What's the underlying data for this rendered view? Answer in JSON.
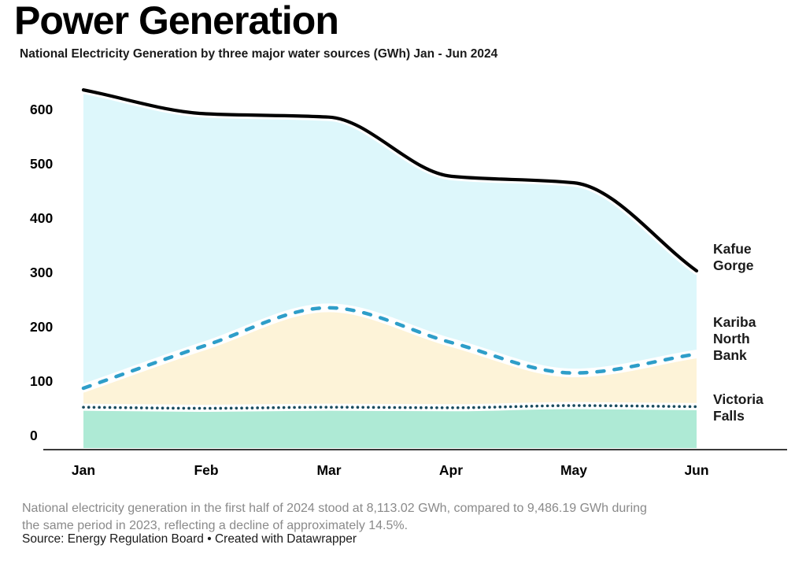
{
  "title": "Power Generation",
  "subtitle": "National Electricity Generation by three major water sources (GWh) Jan - Jun 2024",
  "footer": {
    "note": "National electricity generation in the first half of 2024 stood at 8,113.02 GWh, compared to 9,486.19 GWh during\nthe same period in 2023, reflecting a decline of approximately 14.5%.",
    "source": "Source: Energy Regulation Board • Created with Datawrapper"
  },
  "chart_data": {
    "type": "area",
    "title": "Power Generation",
    "subtitle": "National Electricity Generation by three major water sources (GWh) Jan - Jun 2024",
    "unit": "GWh",
    "categories": [
      "Jan",
      "Feb",
      "Mar",
      "Apr",
      "May",
      "Jun"
    ],
    "y_ticks": [
      600,
      500,
      400,
      300,
      200,
      100,
      0
    ],
    "ylim": [
      0,
      650
    ],
    "grid": false,
    "legend_position": "right-of-line-ends",
    "series": [
      {
        "name": "Kafue Gorge",
        "label": "Kafue\nGorge",
        "values": [
          636,
          592,
          586,
          477,
          465,
          303
        ],
        "line_style": "solid",
        "line_color": "#000000",
        "fill_color": "#ddf7fb"
      },
      {
        "name": "Kariba North Bank",
        "label": "Kariba\nNorth\nBank",
        "values": [
          87,
          166,
          235,
          171,
          115,
          150
        ],
        "line_style": "dashed",
        "line_color": "#2e9ec9",
        "fill_color": "#fdf3d8"
      },
      {
        "name": "Victoria Falls",
        "label": "Victoria\nFalls",
        "values": [
          52,
          50,
          52,
          51,
          55,
          53
        ],
        "line_style": "dotted",
        "line_color": "#1a4c5e",
        "fill_color": "#aeead5"
      }
    ]
  },
  "colors": {
    "background": "#ffffff",
    "axis_line": "#3a3a3a",
    "tick_label": "#000000",
    "note_text": "#8a8a8a",
    "source_text": "#1a1a1a"
  }
}
